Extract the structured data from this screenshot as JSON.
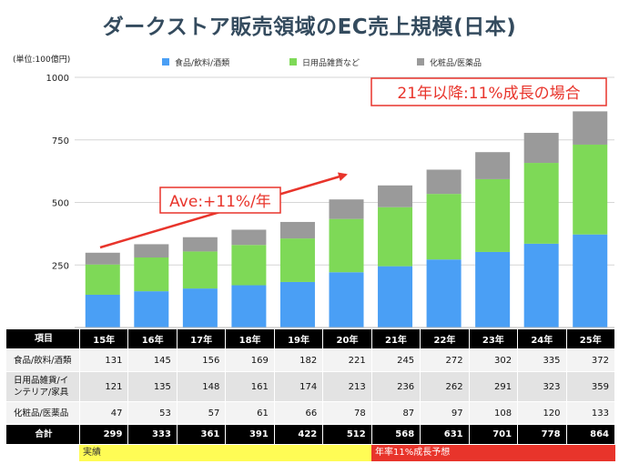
{
  "chart_data": {
    "type": "stacked-bar",
    "title": "ダークストア販売領域のEC売上規模(日本)",
    "unit_label": "(単位:100億円)",
    "categories": [
      "15年",
      "16年",
      "17年",
      "18年",
      "19年",
      "20年",
      "21年",
      "22年",
      "23年",
      "24年",
      "25年"
    ],
    "series": [
      {
        "name": "食品/飲料/酒類",
        "color": "#4a9ff5",
        "values": [
          131,
          145,
          156,
          169,
          182,
          221,
          245,
          272,
          302,
          335,
          372
        ]
      },
      {
        "name": "日用品雑貨など",
        "color": "#7ed957",
        "values": [
          121,
          135,
          148,
          161,
          174,
          213,
          236,
          262,
          291,
          323,
          359
        ]
      },
      {
        "name": "化粧品/医薬品",
        "color": "#9a9a9a",
        "values": [
          47,
          53,
          57,
          61,
          66,
          78,
          87,
          97,
          108,
          120,
          133
        ]
      }
    ],
    "yticks": [
      250,
      500,
      750,
      1000
    ],
    "ylim": [
      0,
      1000
    ],
    "legend_position": "top",
    "annotation_growth": "Ave:+11%/年",
    "annotation_forecast": "21年以降:11%成長の場合"
  },
  "table": {
    "header_label": "項目",
    "rows": [
      {
        "label": "食品/飲料/酒類",
        "values": [
          131,
          145,
          156,
          169,
          182,
          221,
          245,
          272,
          302,
          335,
          372
        ]
      },
      {
        "label": "日用品雑貨/インテリア/家具",
        "values": [
          121,
          135,
          148,
          161,
          174,
          213,
          236,
          262,
          291,
          323,
          359
        ]
      },
      {
        "label": "化粧品/医薬品",
        "values": [
          47,
          53,
          57,
          61,
          66,
          78,
          87,
          97,
          108,
          120,
          133
        ]
      }
    ],
    "total_label": "合計",
    "totals": [
      299,
      333,
      361,
      391,
      422,
      512,
      568,
      631,
      701,
      778,
      864
    ]
  },
  "bands": {
    "actual": "実績",
    "forecast": "年率11%成長予想"
  },
  "colors": {
    "title": "#344b5e",
    "annotation_red": "#e8342b",
    "band_actual": "#fffc55",
    "band_forecast": "#e8342b"
  }
}
